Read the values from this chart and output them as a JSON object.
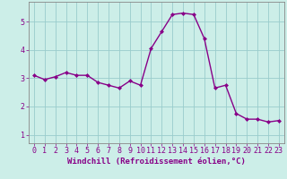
{
  "x": [
    0,
    1,
    2,
    3,
    4,
    5,
    6,
    7,
    8,
    9,
    10,
    11,
    12,
    13,
    14,
    15,
    16,
    17,
    18,
    19,
    20,
    21,
    22,
    23
  ],
  "y": [
    3.1,
    2.95,
    3.05,
    3.2,
    3.1,
    3.1,
    2.85,
    2.75,
    2.65,
    2.9,
    2.75,
    4.05,
    4.65,
    5.25,
    5.3,
    5.25,
    4.4,
    2.65,
    2.75,
    1.75,
    1.55,
    1.55,
    1.45,
    1.5
  ],
  "line_color": "#880088",
  "marker": "D",
  "markersize": 2.0,
  "linewidth": 1.0,
  "bg_color": "#cceee8",
  "grid_color": "#99cccc",
  "xlabel": "Windchill (Refroidissement éolien,°C)",
  "xlabel_color": "#880088",
  "xlabel_fontsize": 6.5,
  "tick_color": "#880088",
  "tick_fontsize": 6.0,
  "ylabel_ticks": [
    1,
    2,
    3,
    4,
    5
  ],
  "xlim": [
    -0.5,
    23.5
  ],
  "ylim": [
    0.7,
    5.7
  ]
}
